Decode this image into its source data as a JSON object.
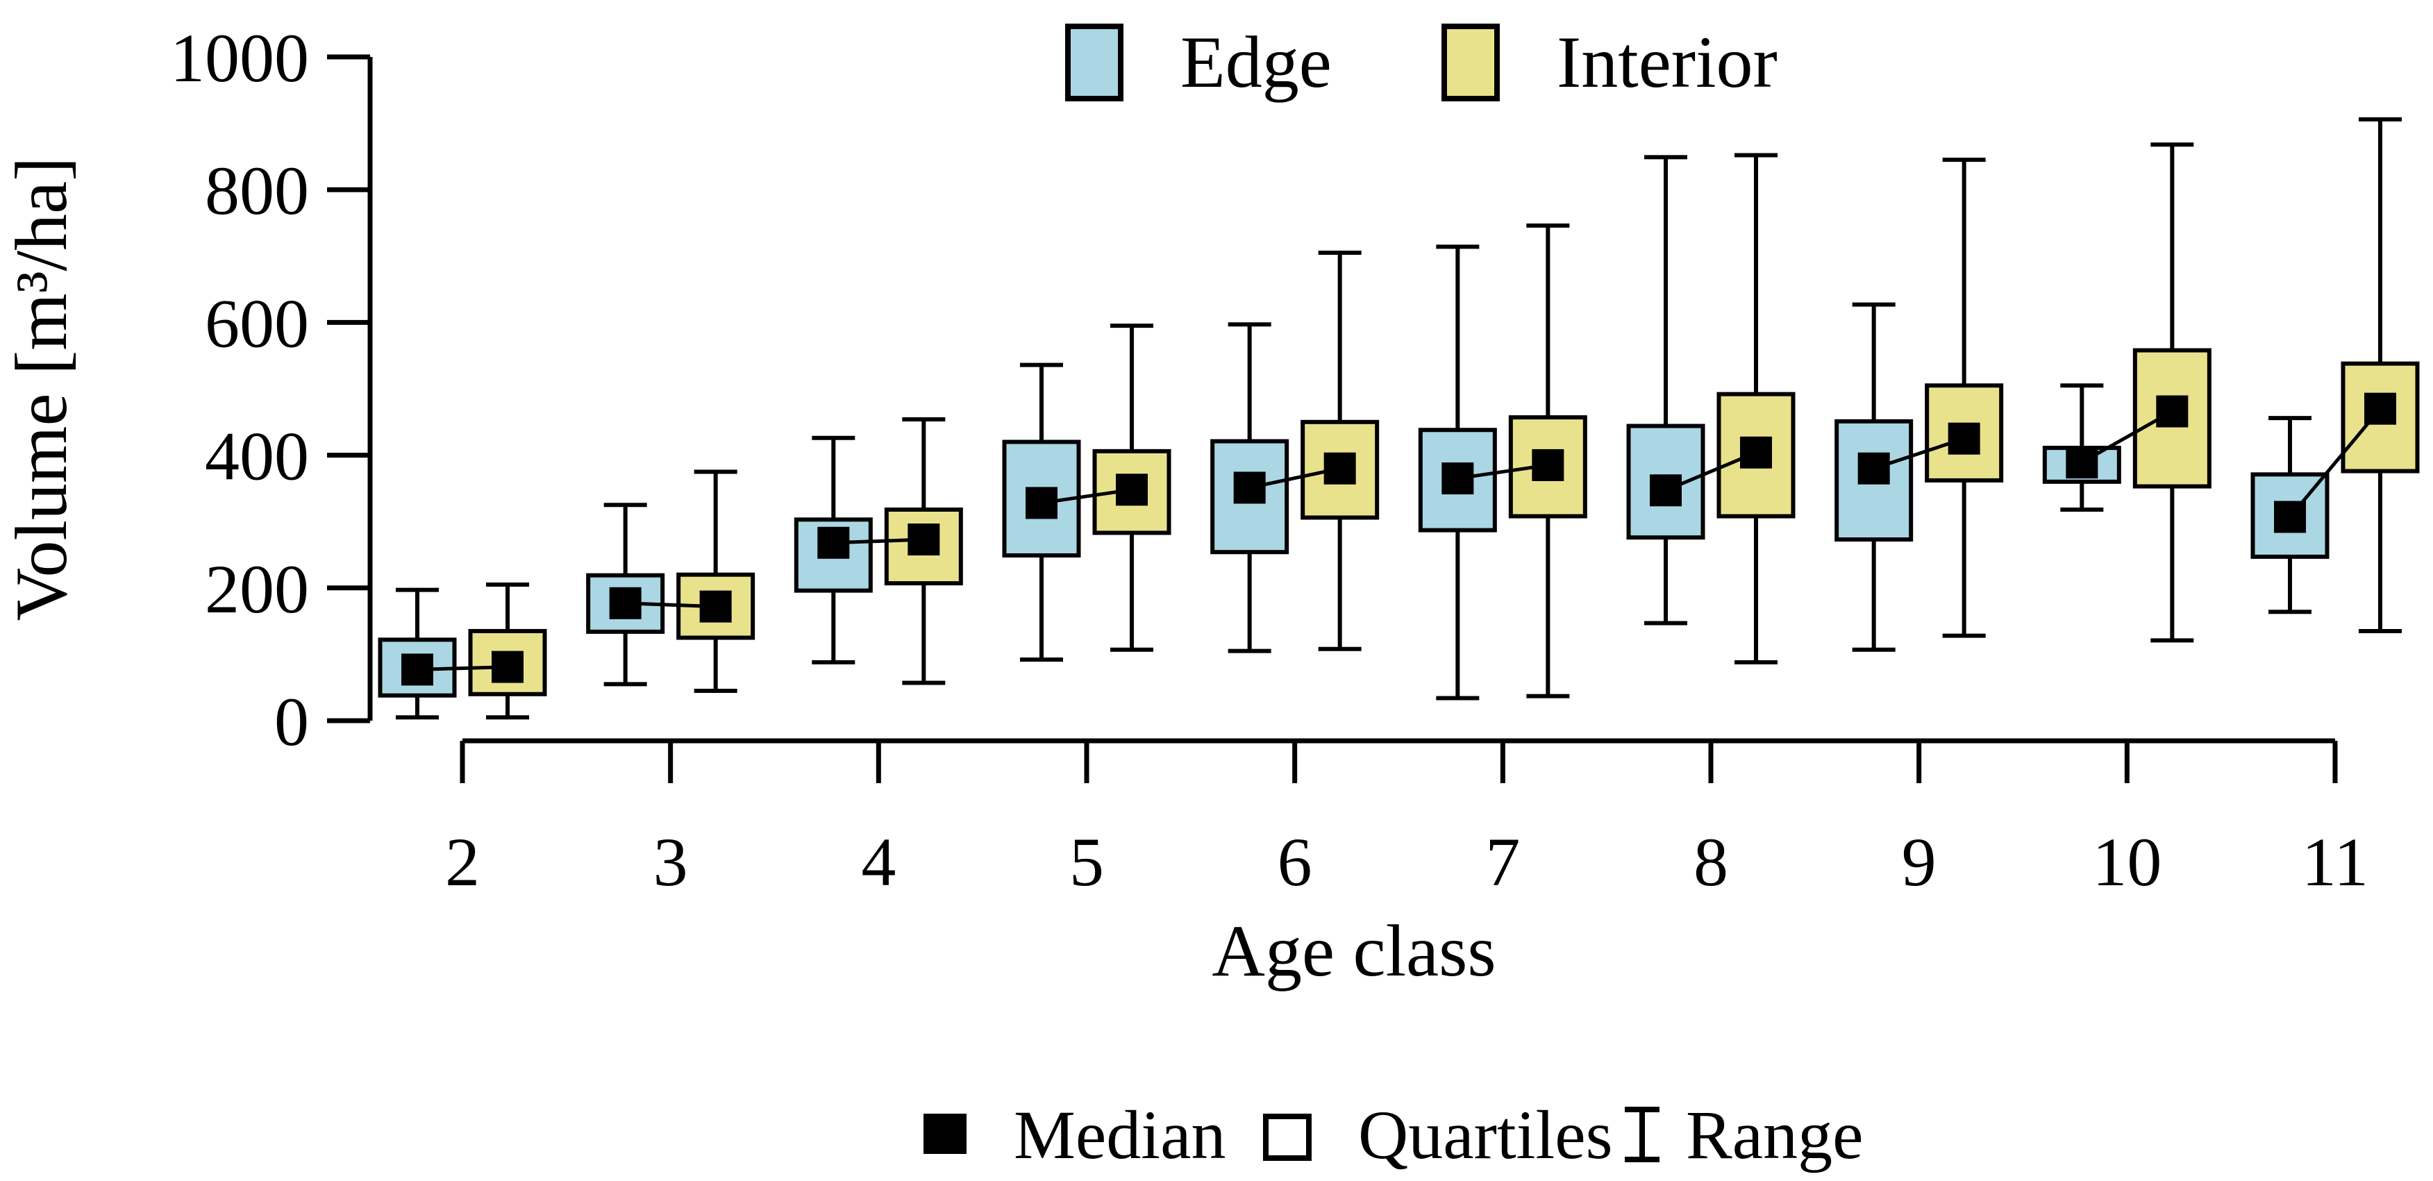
{
  "figure": {
    "background": "#ffffff",
    "top_legend": {
      "edge_label": "Edge",
      "interior_label": "Interior"
    },
    "bottom_legend": {
      "median_label": "Median",
      "quartiles_label": "Quartiles",
      "range_label": "Range"
    }
  },
  "chart_data": {
    "type": "boxplot",
    "title": "",
    "xlabel": "Age class",
    "ylabel": "Volume [m³/ha]",
    "ylim": [
      0,
      1000
    ],
    "yticks": [
      0,
      200,
      400,
      600,
      800,
      1000
    ],
    "categories": [
      "2",
      "3",
      "4",
      "5",
      "6",
      "7",
      "8",
      "9",
      "10",
      "11"
    ],
    "grid": false,
    "legend_position": "top",
    "colors": {
      "edge_fill": "#ABD7E4",
      "interior_fill": "#E9E28C",
      "stroke": "#000000",
      "median_marker": "#000000"
    },
    "series": [
      {
        "name": "Edge",
        "boxes": [
          {
            "category": "2",
            "min": 5,
            "q1": 38,
            "median": 77,
            "q3": 122,
            "max": 197
          },
          {
            "category": "3",
            "min": 55,
            "q1": 134,
            "median": 177,
            "q3": 219,
            "max": 325
          },
          {
            "category": "4",
            "min": 88,
            "q1": 196,
            "median": 268,
            "q3": 303,
            "max": 426
          },
          {
            "category": "5",
            "min": 92,
            "q1": 249,
            "median": 328,
            "q3": 420,
            "max": 536
          },
          {
            "category": "6",
            "min": 105,
            "q1": 254,
            "median": 351,
            "q3": 421,
            "max": 597
          },
          {
            "category": "7",
            "min": 34,
            "q1": 287,
            "median": 365,
            "q3": 438,
            "max": 714
          },
          {
            "category": "8",
            "min": 147,
            "q1": 276,
            "median": 347,
            "q3": 444,
            "max": 849
          },
          {
            "category": "9",
            "min": 107,
            "q1": 273,
            "median": 380,
            "q3": 451,
            "max": 627
          },
          {
            "category": "10",
            "min": 318,
            "q1": 360,
            "median": 389,
            "q3": 411,
            "max": 505
          },
          {
            "category": "11",
            "min": 164,
            "q1": 247,
            "median": 307,
            "q3": 371,
            "max": 456
          }
        ]
      },
      {
        "name": "Interior",
        "boxes": [
          {
            "category": "2",
            "min": 5,
            "q1": 40,
            "median": 81,
            "q3": 135,
            "max": 205
          },
          {
            "category": "3",
            "min": 45,
            "q1": 125,
            "median": 172,
            "q3": 220,
            "max": 375
          },
          {
            "category": "4",
            "min": 57,
            "q1": 207,
            "median": 273,
            "q3": 318,
            "max": 454
          },
          {
            "category": "5",
            "min": 107,
            "q1": 283,
            "median": 348,
            "q3": 406,
            "max": 595
          },
          {
            "category": "6",
            "min": 108,
            "q1": 306,
            "median": 380,
            "q3": 450,
            "max": 705
          },
          {
            "category": "7",
            "min": 37,
            "q1": 308,
            "median": 385,
            "q3": 457,
            "max": 746
          },
          {
            "category": "8",
            "min": 88,
            "q1": 308,
            "median": 404,
            "q3": 492,
            "max": 852
          },
          {
            "category": "9",
            "min": 128,
            "q1": 362,
            "median": 425,
            "q3": 505,
            "max": 845
          },
          {
            "category": "10",
            "min": 121,
            "q1": 353,
            "median": 466,
            "q3": 558,
            "max": 868
          },
          {
            "category": "11",
            "min": 135,
            "q1": 376,
            "median": 470,
            "q3": 538,
            "max": 906
          }
        ]
      }
    ]
  }
}
